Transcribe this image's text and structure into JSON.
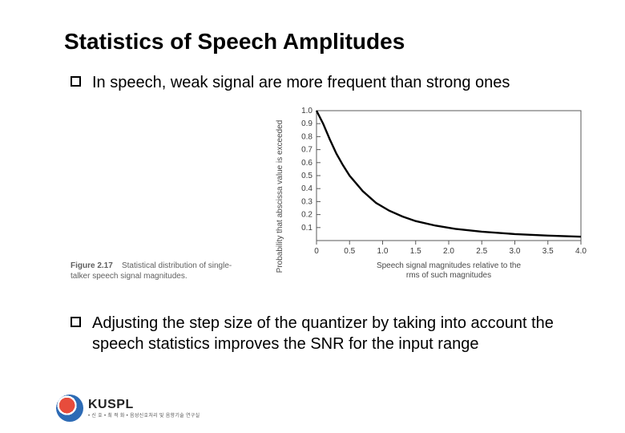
{
  "title": "Statistics of Speech Amplitudes",
  "bullets": {
    "b1": "In speech, weak signal are more frequent than strong ones",
    "b2": "Adjusting the step size of the quantizer by taking into account the speech statistics improves the SNR for the input range"
  },
  "figure": {
    "caption_label": "Figure 2.17",
    "caption_text": "Statistical distribution of single-talker speech signal magnitudes."
  },
  "chart": {
    "type": "line",
    "background_color": "#ffffff",
    "frame_color": "#5a5a5a",
    "line_color": "#000000",
    "line_width": 2.4,
    "x_label": "Speech signal magnitudes relative to the rms of such magnitudes",
    "y_label": "Probability that abscissa value is exceeded",
    "label_fontsize": 10,
    "tick_fontsize": 10,
    "xlim": [
      0,
      4.0
    ],
    "ylim": [
      0,
      1.0
    ],
    "x_ticks": [
      0,
      0.5,
      1.0,
      1.5,
      2.0,
      2.5,
      3.0,
      3.5,
      4.0
    ],
    "y_ticks": [
      0.1,
      0.2,
      0.3,
      0.4,
      0.5,
      0.6,
      0.7,
      0.8,
      0.9,
      1.0
    ],
    "points": [
      [
        0.0,
        1.0
      ],
      [
        0.1,
        0.9
      ],
      [
        0.2,
        0.78
      ],
      [
        0.3,
        0.67
      ],
      [
        0.4,
        0.58
      ],
      [
        0.5,
        0.5
      ],
      [
        0.7,
        0.38
      ],
      [
        0.9,
        0.29
      ],
      [
        1.1,
        0.23
      ],
      [
        1.3,
        0.185
      ],
      [
        1.5,
        0.15
      ],
      [
        1.8,
        0.115
      ],
      [
        2.1,
        0.09
      ],
      [
        2.5,
        0.068
      ],
      [
        3.0,
        0.05
      ],
      [
        3.5,
        0.038
      ],
      [
        4.0,
        0.03
      ]
    ]
  },
  "branding": {
    "name": "KUSPL",
    "sub": "• 신 호 • 최 적 화 • 음성신호처리 및 음향기술 연구실"
  }
}
